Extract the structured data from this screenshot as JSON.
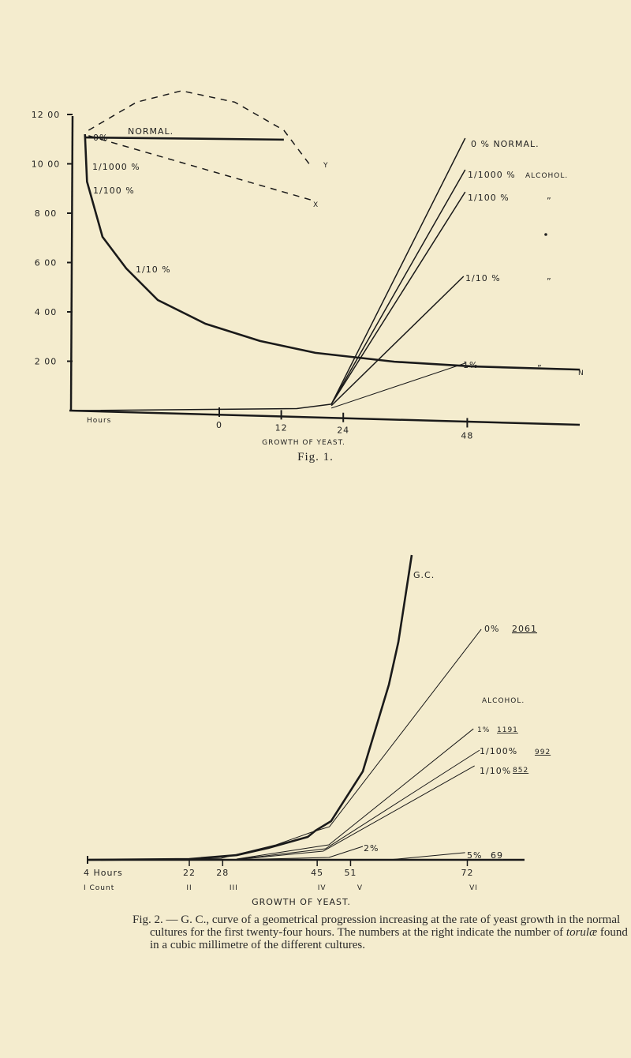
{
  "chart_data": [
    {
      "type": "line",
      "title": "Fig. 1.",
      "xlabel": "GROWTH OF YEAST.",
      "xaxis_label": "Hours",
      "x_ticks": [
        0,
        12,
        24,
        48
      ],
      "x_tick_labels": [
        "0",
        "12",
        "24",
        "48"
      ],
      "y_ticks": [
        200,
        400,
        600,
        800,
        1000,
        1200
      ],
      "y_tick_labels": [
        "2 00",
        "4 00",
        "6 00",
        "8 00",
        "10 00",
        "12 00"
      ],
      "ylim": [
        0,
        1200
      ],
      "series": [
        {
          "name": "decline-curve",
          "style": "solid-heavy",
          "points": [
            [
              -26,
              1120
            ],
            [
              -25.6,
              928
            ],
            [
              -22.6,
              704
            ],
            [
              -18,
              576
            ],
            [
              -11.9,
              448
            ],
            [
              -2.7,
              352
            ],
            [
              7.9,
              282
            ],
            [
              18.6,
              234
            ],
            [
              33.9,
              198
            ],
            [
              49,
              179
            ],
            [
              69.8,
              166
            ]
          ]
        },
        {
          "name": "normal-horizontal",
          "style": "solid-heavy",
          "points": [
            [
              -26,
              1107
            ],
            [
              12.5,
              1098
            ]
          ]
        },
        {
          "name": "dashed-upper-Y",
          "style": "dashed",
          "points": [
            [
              -25.3,
              1136
            ],
            [
              -16,
              1250
            ],
            [
              -7.3,
              1296
            ],
            [
              3,
              1250
            ],
            [
              12.5,
              1136
            ],
            [
              17.9,
              986
            ]
          ]
        },
        {
          "name": "dashed-lower-X",
          "style": "dashed",
          "points": [
            [
              -25.3,
              1114
            ],
            [
              18.2,
              851
            ]
          ]
        },
        {
          "name": "0% normal",
          "style": "solid",
          "points": [
            [
              -28,
              0
            ],
            [
              15,
              8
            ],
            [
              21.7,
              26
            ],
            [
              47.6,
              1104
            ]
          ]
        },
        {
          "name": "1/1000 %",
          "style": "solid",
          "points": [
            [
              21.7,
              26
            ],
            [
              47.6,
              976
            ]
          ]
        },
        {
          "name": "1/100 %",
          "style": "solid",
          "points": [
            [
              21.7,
              26
            ],
            [
              47.6,
              886
            ]
          ]
        },
        {
          "name": "1/10 %",
          "style": "solid",
          "points": [
            [
              21.7,
              20
            ],
            [
              47.3,
              544
            ]
          ]
        },
        {
          "name": "1 %",
          "style": "thin",
          "points": [
            [
              21.7,
              10
            ],
            [
              47.6,
              192
            ]
          ]
        }
      ],
      "annotations": {
        "left_0": "0%",
        "left_normal": "NORMAL.",
        "left_1000": "1/1000 %",
        "left_100": "1/100 %",
        "left_10": "1/10 %",
        "x_mark": "X",
        "y_mark": "Y",
        "r_0": "0 % NORMAL.",
        "r_1000": "1/1000 %",
        "r_alcohol": "ALCOHOL.",
        "r_100": "1/100 %",
        "r_10": "1/10 %",
        "r_1": "1%",
        "ditto": "”",
        "n_mark": "N"
      }
    },
    {
      "type": "line",
      "title": "GROWTH OF YEAST.",
      "xaxis_label": "4 Hours",
      "count_label": "I Count",
      "x_ticks": [
        22,
        28,
        45,
        51,
        72
      ],
      "x_tick_labels": [
        "22",
        "28",
        "45",
        "51",
        "72"
      ],
      "count_labels": [
        "II",
        "III",
        "IV",
        "V",
        "VI"
      ],
      "legend_heading": "ALCOHOL.",
      "series": [
        {
          "name": "G.C.",
          "label": "G.C.",
          "style": "heavy",
          "points": [
            [
              4,
              0
            ],
            [
              22,
              7
            ],
            [
              30.5,
              42
            ],
            [
              36.2,
              106
            ],
            [
              43.3,
              205
            ],
            [
              44.7,
              261
            ],
            [
              47.5,
              346
            ],
            [
              53.2,
              790
            ],
            [
              57.9,
              1567
            ],
            [
              59.6,
              1948
            ],
            [
              62,
              2724
            ]
          ]
        },
        {
          "name": "0%",
          "label": "0%",
          "count": "2061",
          "points": [
            [
              22,
              5
            ],
            [
              27.7,
              14
            ],
            [
              37.6,
              134
            ],
            [
              44,
              247
            ],
            [
              47.2,
              296
            ],
            [
              74.5,
              2061
            ]
          ]
        },
        {
          "name": "1%",
          "label": "1%",
          "count": "1191",
          "points": [
            [
              30.5,
              7
            ],
            [
              47.1,
              134
            ],
            [
              73.1,
              1171
            ]
          ]
        },
        {
          "name": "1/100%",
          "label": "1/100%",
          "count": "992",
          "points": [
            [
              30.5,
              4
            ],
            [
              46.5,
              99
            ],
            [
              74.2,
              980
            ]
          ]
        },
        {
          "name": "1/10%",
          "label": "1/10%",
          "count": "852",
          "points": [
            [
              30.5,
              2
            ],
            [
              46.1,
              78
            ],
            [
              73.3,
              840
            ]
          ]
        },
        {
          "name": "2%",
          "label": "2%",
          "points": [
            [
              30.5,
              1
            ],
            [
              47.1,
              21
            ],
            [
              53.2,
              120
            ]
          ]
        },
        {
          "name": "5%",
          "label": "5%",
          "count": "69",
          "points": [
            [
              57.9,
              0
            ],
            [
              71.6,
              64
            ]
          ]
        }
      ]
    }
  ],
  "fig1_caption": "Fig. 1.",
  "fig2_caption": {
    "label": "Fig. 2.",
    "text_before": " — G. C., curve of a geometrical progression increasing at the rate of yeast growth in the normal cultures for the first twenty-four hours. The numbers at the right indicate the number of ",
    "italic": "torulæ",
    "text_after": " found in a cubic millimetre of the different cultures."
  },
  "colors": {
    "paper": "#f4ecce",
    "ink": "#222222"
  }
}
